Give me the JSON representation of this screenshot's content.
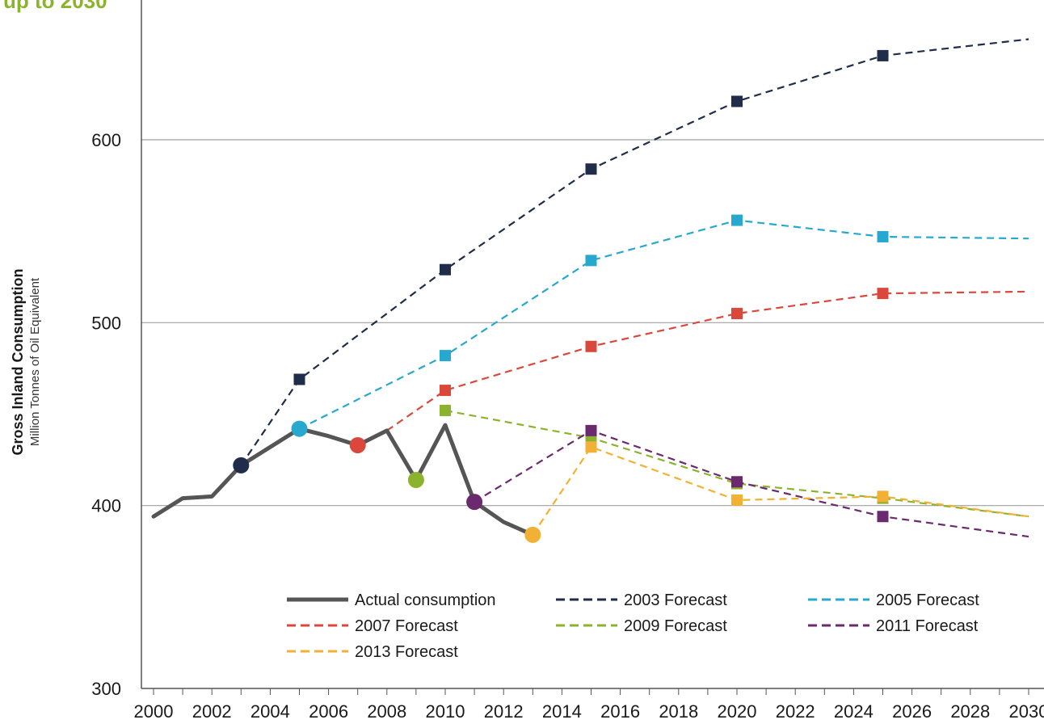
{
  "title_fragment": "up to 2030",
  "colors": {
    "title": "#8cb32d",
    "actual": "#555555",
    "grid": "#a0a0a0",
    "axis": "#555555"
  },
  "chart_data": {
    "type": "line",
    "ylabel": "Gross Inland Consumption",
    "ylabel_sub": "Million Tonnes of Oil Equivalent",
    "xlim": [
      2000,
      2030.5
    ],
    "ylim": [
      300,
      660
    ],
    "x_ticks": [
      2000,
      2002,
      2004,
      2006,
      2008,
      2010,
      2012,
      2014,
      2016,
      2018,
      2020,
      2022,
      2024,
      2026,
      2028,
      2030
    ],
    "y_ticks": [
      300,
      400,
      500,
      600
    ],
    "gridlines": [
      400,
      500,
      600
    ],
    "legend_position": "bottom-center",
    "series": [
      {
        "name": "Actual consumption",
        "style": "solid",
        "color": "#555555",
        "points": [
          [
            2000,
            394
          ],
          [
            2001,
            404
          ],
          [
            2002,
            405
          ],
          [
            2003,
            422
          ],
          [
            2004,
            432
          ],
          [
            2005,
            442
          ],
          [
            2006,
            438
          ],
          [
            2007,
            433
          ],
          [
            2008,
            441
          ],
          [
            2009,
            414
          ],
          [
            2010,
            444
          ],
          [
            2011,
            402
          ],
          [
            2012,
            391
          ],
          [
            2013,
            384
          ]
        ]
      },
      {
        "name": "2003 Forecast",
        "style": "dashed",
        "color": "#1f2d4a",
        "start": [
          2003,
          422
        ],
        "points": [
          [
            2005,
            469
          ],
          [
            2010,
            529
          ],
          [
            2015,
            584
          ],
          [
            2020,
            621
          ],
          [
            2025,
            646
          ],
          [
            2030,
            655
          ]
        ],
        "markers": [
          [
            2005,
            469
          ],
          [
            2010,
            529
          ],
          [
            2015,
            584
          ],
          [
            2020,
            621
          ],
          [
            2025,
            646
          ]
        ]
      },
      {
        "name": "2005 Forecast",
        "style": "dashed",
        "color": "#27a9cf",
        "start": [
          2005,
          442
        ],
        "points": [
          [
            2010,
            482
          ],
          [
            2015,
            534
          ],
          [
            2020,
            556
          ],
          [
            2025,
            547
          ],
          [
            2030,
            546
          ]
        ],
        "markers": [
          [
            2010,
            482
          ],
          [
            2015,
            534
          ],
          [
            2020,
            556
          ],
          [
            2025,
            547
          ]
        ]
      },
      {
        "name": "2007 Forecast",
        "style": "dashed",
        "color": "#d9483b",
        "start": [
          2008,
          441
        ],
        "points": [
          [
            2010,
            463
          ],
          [
            2015,
            487
          ],
          [
            2020,
            505
          ],
          [
            2025,
            516
          ],
          [
            2030,
            517
          ]
        ],
        "markers": [
          [
            2010,
            463
          ],
          [
            2015,
            487
          ],
          [
            2020,
            505
          ],
          [
            2025,
            516
          ]
        ]
      },
      {
        "name": "2009 Forecast",
        "style": "dashed",
        "color": "#8cb32d",
        "start": [
          2010,
          452
        ],
        "points": [
          [
            2015,
            437
          ],
          [
            2020,
            412
          ],
          [
            2025,
            404
          ],
          [
            2030,
            394
          ]
        ],
        "markers": [
          [
            2010,
            452
          ],
          [
            2015,
            437
          ],
          [
            2020,
            412
          ],
          [
            2025,
            404
          ]
        ]
      },
      {
        "name": "2011 Forecast",
        "style": "dashed",
        "color": "#6b2a6e",
        "start": [
          2011,
          402
        ],
        "points": [
          [
            2015,
            441
          ],
          [
            2020,
            413
          ],
          [
            2025,
            394
          ],
          [
            2030,
            383
          ]
        ],
        "markers": [
          [
            2015,
            441
          ],
          [
            2020,
            413
          ],
          [
            2025,
            394
          ]
        ]
      },
      {
        "name": "2013 Forecast",
        "style": "dashed",
        "color": "#f2b134",
        "start": [
          2013,
          384
        ],
        "points": [
          [
            2015,
            432
          ],
          [
            2020,
            403
          ],
          [
            2025,
            405
          ],
          [
            2030,
            394
          ]
        ],
        "markers": [
          [
            2015,
            432
          ],
          [
            2020,
            403
          ],
          [
            2025,
            405
          ]
        ]
      }
    ],
    "highlight_points": [
      {
        "x": 2003,
        "y": 422,
        "color": "#1f2d4a"
      },
      {
        "x": 2005,
        "y": 442,
        "color": "#27a9cf"
      },
      {
        "x": 2007,
        "y": 433,
        "color": "#d9483b"
      },
      {
        "x": 2009,
        "y": 414,
        "color": "#8cb32d"
      },
      {
        "x": 2011,
        "y": 402,
        "color": "#6b2a6e"
      },
      {
        "x": 2013,
        "y": 384,
        "color": "#f2b134"
      }
    ],
    "legend": [
      [
        "Actual consumption",
        "2003 Forecast",
        "2005 Forecast"
      ],
      [
        "2007 Forecast",
        "2009 Forecast",
        "2011 Forecast"
      ],
      [
        "2013 Forecast"
      ]
    ]
  }
}
